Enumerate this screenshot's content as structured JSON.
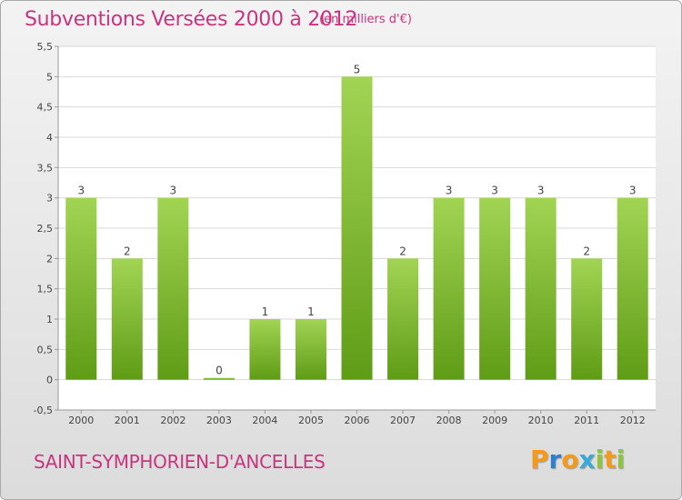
{
  "title": "Subventions Versées 2000 à 2012",
  "unit_note": "(en milliers d'€)",
  "place": "SAINT-SYMPHORIEN-D'ANCELLES",
  "logo": {
    "text": "Proxiti",
    "letters": [
      {
        "ch": "P",
        "color": "#f39a1b"
      },
      {
        "ch": "r",
        "color": "#2f7fd0"
      },
      {
        "ch": "o",
        "color": "#f39a1b"
      },
      {
        "ch": "x",
        "color": "#3aa8d8"
      },
      {
        "ch": "i",
        "color": "#8cc63f"
      },
      {
        "ch": "t",
        "color": "#f39a1b"
      },
      {
        "ch": "i",
        "color": "#8cc63f"
      }
    ]
  },
  "colors": {
    "bar_top": "#a2d454",
    "bar_bottom": "#5f9c16",
    "text_accent": "#c8357f",
    "axis": "#9a9a9a",
    "grid": "#d8d8d8",
    "label": "#444444"
  },
  "chart_data": {
    "type": "bar",
    "categories": [
      "2000",
      "2001",
      "2002",
      "2003",
      "2004",
      "2005",
      "2006",
      "2007",
      "2008",
      "2009",
      "2010",
      "2011",
      "2012"
    ],
    "values": [
      3,
      2,
      3,
      0,
      1,
      1,
      5,
      2,
      3,
      3,
      3,
      2,
      3
    ],
    "value_labels": [
      "3",
      "2",
      "3",
      "0",
      "1",
      "1",
      "5",
      "2",
      "3",
      "3",
      "3",
      "2",
      "3"
    ],
    "ylim": [
      -0.5,
      5.5
    ],
    "yticks": [
      -0.5,
      0,
      0.5,
      1,
      1.5,
      2,
      2.5,
      3,
      3.5,
      4,
      4.5,
      5,
      5.5
    ],
    "ytick_labels": [
      "-0,5",
      "0",
      "0,5",
      "1",
      "1,5",
      "2",
      "2,5",
      "3",
      "3,5",
      "4",
      "4,5",
      "5",
      "5,5"
    ],
    "grid": true
  }
}
